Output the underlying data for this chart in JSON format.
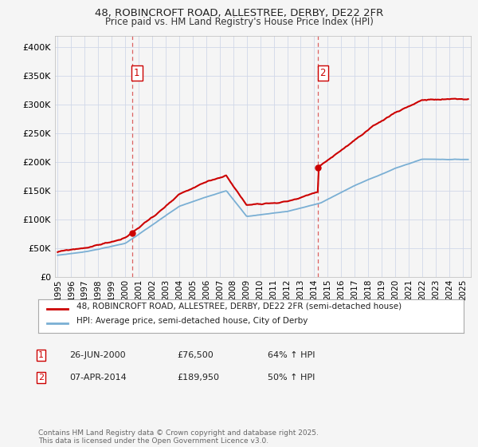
{
  "title1": "48, ROBINCROFT ROAD, ALLESTREE, DERBY, DE22 2FR",
  "title2": "Price paid vs. HM Land Registry's House Price Index (HPI)",
  "ylim": [
    0,
    420000
  ],
  "yticks": [
    0,
    50000,
    100000,
    150000,
    200000,
    250000,
    300000,
    350000,
    400000
  ],
  "ytick_labels": [
    "£0",
    "£50K",
    "£100K",
    "£150K",
    "£200K",
    "£250K",
    "£300K",
    "£350K",
    "£400K"
  ],
  "sale1_year": 2000.5,
  "sale1_price": 76500,
  "sale2_year": 2014.27,
  "sale2_price": 189950,
  "legend_property": "48, ROBINCROFT ROAD, ALLESTREE, DERBY, DE22 2FR (semi-detached house)",
  "legend_hpi": "HPI: Average price, semi-detached house, City of Derby",
  "ann1_num": "1",
  "ann1_date": "26-JUN-2000",
  "ann1_price": "£76,500",
  "ann1_hpi": "64% ↑ HPI",
  "ann2_num": "2",
  "ann2_date": "07-APR-2014",
  "ann2_price": "£189,950",
  "ann2_hpi": "50% ↑ HPI",
  "footer": "Contains HM Land Registry data © Crown copyright and database right 2025.\nThis data is licensed under the Open Government Licence v3.0.",
  "property_color": "#cc0000",
  "hpi_color": "#7aafd4",
  "vline_color": "#cc0000",
  "background_color": "#f5f5f5",
  "grid_color": "#d0d8e8"
}
